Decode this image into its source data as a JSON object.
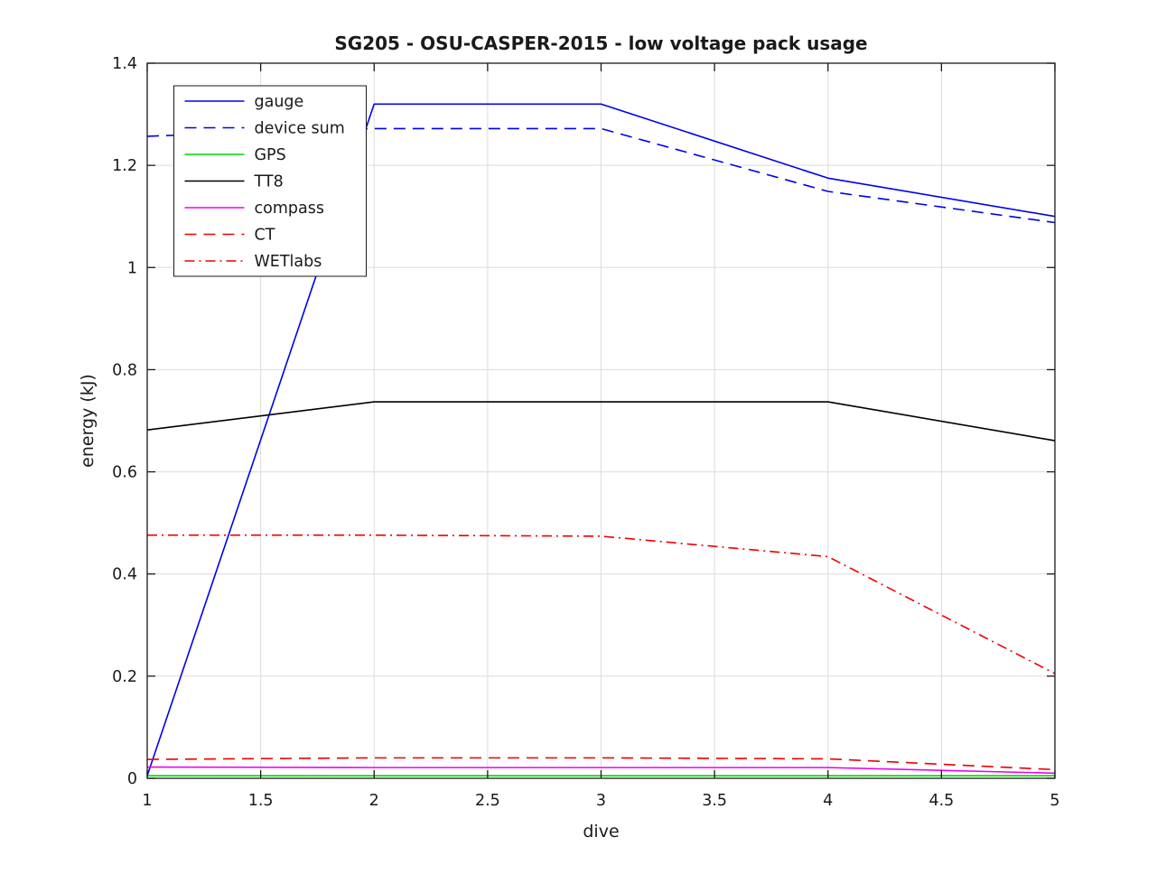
{
  "figure": {
    "title": "SG205 - OSU-CASPER-2015 - low voltage pack usage",
    "xlabel": "dive",
    "ylabel": "energy (kJ)"
  },
  "chart_data": {
    "type": "line",
    "title": "SG205 - OSU-CASPER-2015 - low voltage pack usage",
    "xlabel": "dive",
    "ylabel": "energy (kJ)",
    "xlim": [
      1,
      5
    ],
    "ylim": [
      0,
      1.4
    ],
    "xticks": [
      1,
      1.5,
      2,
      2.5,
      3,
      3.5,
      4,
      4.5,
      5
    ],
    "xtick_labels": [
      "1",
      "1.5",
      "2",
      "2.5",
      "3",
      "3.5",
      "4",
      "4.5",
      "5"
    ],
    "yticks": [
      0,
      0.2,
      0.4,
      0.6,
      0.8,
      1,
      1.2,
      1.4
    ],
    "ytick_labels": [
      "0",
      "0.2",
      "0.4",
      "0.6",
      "0.8",
      "1",
      "1.2",
      "1.4"
    ],
    "grid": true,
    "legend_position": "upper-left",
    "x": [
      1,
      2,
      3,
      4,
      5
    ],
    "series": [
      {
        "name": "gauge",
        "color": "#0000ee",
        "style": "solid",
        "values": [
          0.005,
          1.32,
          1.32,
          1.175,
          1.1
        ]
      },
      {
        "name": "device sum",
        "color": "#0000ee",
        "style": "dashed",
        "values": [
          1.257,
          1.272,
          1.272,
          1.149,
          1.088
        ]
      },
      {
        "name": "GPS",
        "color": "#00d500",
        "style": "solid",
        "values": [
          0.005,
          0.005,
          0.005,
          0.005,
          0.005
        ]
      },
      {
        "name": "TT8",
        "color": "#000000",
        "style": "solid",
        "values": [
          0.682,
          0.737,
          0.737,
          0.737,
          0.661
        ]
      },
      {
        "name": "compass",
        "color": "#ee00ee",
        "style": "solid",
        "values": [
          0.022,
          0.021,
          0.021,
          0.021,
          0.01
        ]
      },
      {
        "name": "CT",
        "color": "#ee0000",
        "style": "dashed",
        "values": [
          0.037,
          0.04,
          0.04,
          0.038,
          0.017
        ]
      },
      {
        "name": "WETlabs",
        "color": "#ee0000",
        "style": "dashdot",
        "values": [
          0.476,
          0.476,
          0.474,
          0.434,
          0.205
        ]
      }
    ]
  },
  "style": {
    "axes_color": "#1a1a1a",
    "grid_color": "#dcdcdc",
    "background": "#ffffff"
  }
}
